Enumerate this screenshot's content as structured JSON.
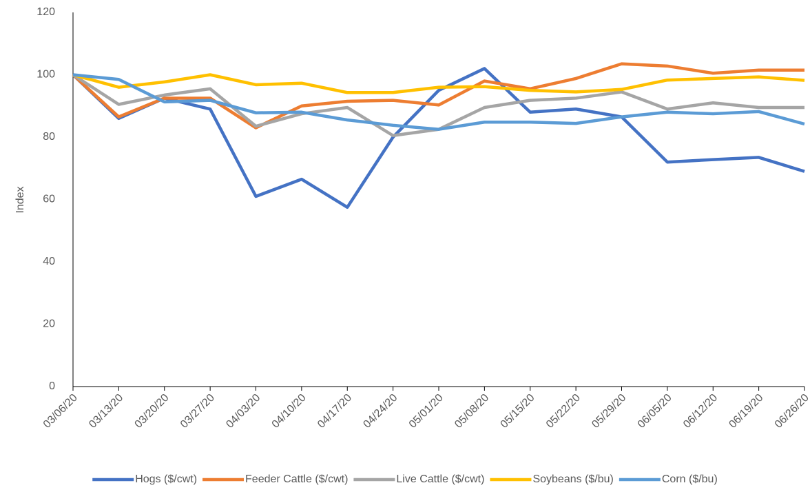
{
  "chart_data": {
    "type": "line",
    "y_label": "Index",
    "categories": [
      "03/06/20",
      "03/13/20",
      "03/20/20",
      "03/27/20",
      "04/03/20",
      "04/10/20",
      "04/17/20",
      "04/24/20",
      "05/01/20",
      "05/08/20",
      "05/15/20",
      "05/22/20",
      "05/29/20",
      "06/05/20",
      "06/12/20",
      "06/19/20",
      "06/26/20"
    ],
    "series": [
      {
        "name": "Hogs ($/cwt)",
        "color": "#4472c4",
        "values": [
          100,
          86,
          92.5,
          89,
          61,
          66.5,
          57.5,
          80,
          95,
          102,
          88,
          89,
          86.5,
          72,
          72.8,
          73.5,
          69
        ]
      },
      {
        "name": "Feeder Cattle ($/cwt)",
        "color": "#ed7d31",
        "values": [
          100,
          86.5,
          92.5,
          92.5,
          83,
          90,
          91.5,
          91.8,
          90.3,
          98,
          95.5,
          98.8,
          103.5,
          102.8,
          100.5,
          101.5,
          101.5
        ]
      },
      {
        "name": "Live Cattle ($/cwt)",
        "color": "#a5a5a5",
        "values": [
          100,
          90.5,
          93.5,
          95.5,
          83.5,
          87.5,
          89.5,
          80.5,
          82.5,
          89.5,
          91.8,
          92.5,
          94.5,
          89,
          91,
          89.5,
          89.5
        ]
      },
      {
        "name": "Soybeans ($/bu)",
        "color": "#ffc000",
        "values": [
          100,
          96,
          97.7,
          100,
          96.8,
          97.3,
          94.3,
          94.3,
          96,
          96.2,
          95,
          94.5,
          95.3,
          98.3,
          98.8,
          99.3,
          98.2
        ]
      },
      {
        "name": "Corn ($/bu)",
        "color": "#5b9bd5",
        "values": [
          100,
          98.5,
          91.3,
          91.8,
          87.8,
          88,
          85.5,
          83.8,
          82.5,
          84.8,
          84.8,
          84.4,
          86.5,
          88,
          87.5,
          88.2,
          84.2
        ]
      }
    ],
    "ylim": [
      0,
      120
    ],
    "yticks": [
      0,
      20,
      40,
      60,
      80,
      100,
      120
    ],
    "grid": false,
    "legend": "bottom"
  }
}
